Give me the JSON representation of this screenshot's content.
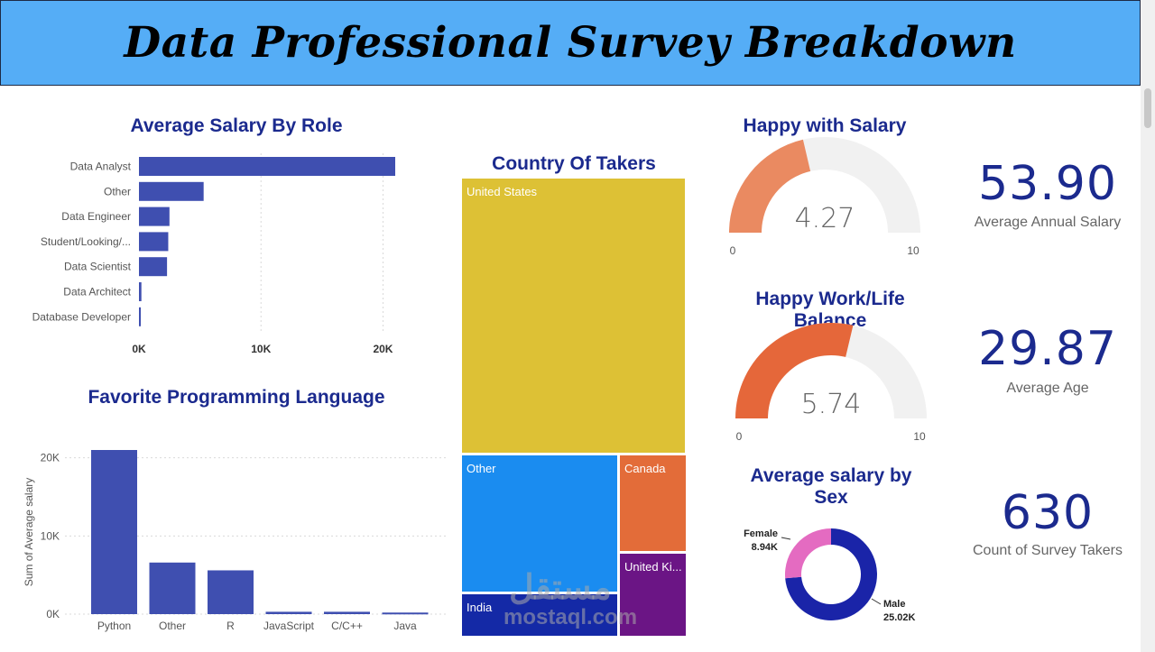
{
  "header": {
    "title": "Data Professional Survey Breakdown"
  },
  "salary_by_role": {
    "title": "Average Salary By Role",
    "chart_data": {
      "type": "bar",
      "orientation": "horizontal",
      "categories": [
        "Data Analyst",
        "Other",
        "Data Engineer",
        "Student/Looking/...",
        "Data Scientist",
        "Data Architect",
        "Database Developer"
      ],
      "values": [
        21000,
        5300,
        2500,
        2400,
        2300,
        200,
        150
      ],
      "xlim": [
        0,
        21000
      ],
      "ticks": [
        0,
        10000,
        20000
      ],
      "tick_labels": [
        "0K",
        "10K",
        "20K"
      ],
      "color": "#3f4fb0"
    }
  },
  "fav_language": {
    "title": "Favorite Programming Language",
    "chart_data": {
      "type": "bar",
      "categories": [
        "Python",
        "Other",
        "R",
        "JavaScript",
        "C/C++",
        "Java"
      ],
      "values": [
        21000,
        6600,
        5600,
        300,
        300,
        200
      ],
      "ylim": [
        0,
        21000
      ],
      "ticks": [
        0,
        10000,
        20000
      ],
      "tick_labels": [
        "0K",
        "10K",
        "20K"
      ],
      "ylabel": "Sum of Average salary",
      "color": "#3f4fb0"
    }
  },
  "country": {
    "title": "Country Of Takers",
    "chart_data": {
      "type": "treemap",
      "categories": [
        "United States",
        "Other",
        "Canada",
        "United Ki...",
        "India"
      ],
      "colors": [
        "#ddc135",
        "#1a8cf0",
        "#e36c39",
        "#6b1585",
        "#1429a6"
      ]
    }
  },
  "happy_salary": {
    "title": "Happy with Salary",
    "value": 4.27,
    "display": "4.27",
    "min": 0,
    "max": 10,
    "min_label": "0",
    "max_label": "10",
    "color": "#ea8a61",
    "track": "#f1f1f1"
  },
  "happy_balance": {
    "title_line1": "Happy Work/Life",
    "title_line2": "Balance",
    "value": 5.74,
    "display": "5.74",
    "min": 0,
    "max": 10,
    "min_label": "0",
    "max_label": "10",
    "color": "#e5673a",
    "track": "#f1f1f1"
  },
  "salary_by_sex": {
    "title_line1": "Average salary by",
    "title_line2": "Sex",
    "chart_data": {
      "type": "donut",
      "categories": [
        "Female",
        "Male"
      ],
      "values": [
        8.94,
        25.02
      ],
      "labels": [
        "8.94K",
        "25.02K"
      ],
      "colors": [
        "#e46bc1",
        "#1a24a8"
      ]
    }
  },
  "kpis": [
    {
      "value": "53.90",
      "label": "Average Annual Salary"
    },
    {
      "value": "29.87",
      "label": "Average Age"
    },
    {
      "value": "630",
      "label": "Count of Survey Takers"
    }
  ],
  "watermark": {
    "arabic": "مستقل",
    "latin": "mostaql.com"
  }
}
